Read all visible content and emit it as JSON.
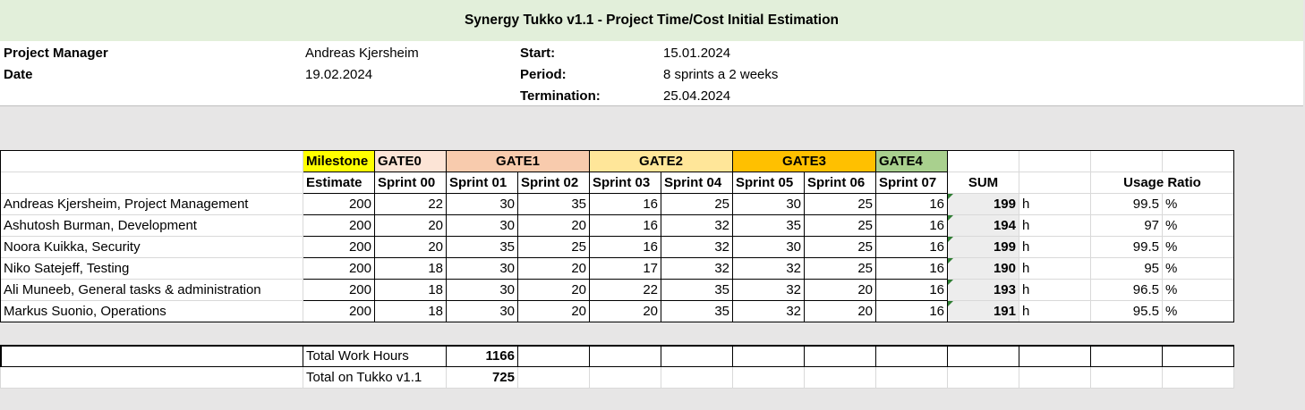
{
  "title": "Synergy Tukko v1.1 - Project Time/Cost Initial Estimation",
  "info": {
    "project_manager_label": "Project Manager",
    "project_manager": "Andreas Kjersheim",
    "date_label": "Date",
    "date": "19.02.2024",
    "start_label": "Start:",
    "start": "15.01.2024",
    "period_label": "Period:",
    "period": "8 sprints a 2 weeks",
    "termination_label": "Termination:",
    "termination": "25.04.2024"
  },
  "header": {
    "milestone": "Milestone",
    "gates": [
      "GATE0",
      "GATE1",
      "GATE2",
      "GATE3",
      "GATE4"
    ],
    "estimate": "Estimate",
    "sprints": [
      "Sprint 00",
      "Sprint 01",
      "Sprint 02",
      "Sprint 03",
      "Sprint 04",
      "Sprint 05",
      "Sprint 06",
      "Sprint 07"
    ],
    "sum": "SUM",
    "usage_ratio": "Usage Ratio"
  },
  "rows": [
    {
      "name": "Andreas Kjersheim, Project Management",
      "estimate": "200",
      "sprints": [
        "22",
        "30",
        "35",
        "16",
        "25",
        "30",
        "25",
        "16"
      ],
      "sum": "199",
      "unit": "h",
      "ratio": "99.5",
      "pct": "%"
    },
    {
      "name": "Ashutosh Burman, Development",
      "estimate": "200",
      "sprints": [
        "20",
        "30",
        "20",
        "16",
        "32",
        "35",
        "25",
        "16"
      ],
      "sum": "194",
      "unit": "h",
      "ratio": "97",
      "pct": "%"
    },
    {
      "name": "Noora Kuikka, Security",
      "estimate": "200",
      "sprints": [
        "20",
        "35",
        "25",
        "16",
        "32",
        "30",
        "25",
        "16"
      ],
      "sum": "199",
      "unit": "h",
      "ratio": "99.5",
      "pct": "%"
    },
    {
      "name": "Niko Satejeff, Testing",
      "estimate": "200",
      "sprints": [
        "18",
        "30",
        "20",
        "17",
        "32",
        "32",
        "25",
        "16"
      ],
      "sum": "190",
      "unit": "h",
      "ratio": "95",
      "pct": "%"
    },
    {
      "name": "Ali Muneeb, General tasks & administration",
      "estimate": "200",
      "sprints": [
        "18",
        "30",
        "20",
        "22",
        "35",
        "32",
        "20",
        "16"
      ],
      "sum": "193",
      "unit": "h",
      "ratio": "96.5",
      "pct": "%"
    },
    {
      "name": "Markus Suonio, Operations",
      "estimate": "200",
      "sprints": [
        "18",
        "30",
        "20",
        "20",
        "35",
        "32",
        "20",
        "16"
      ],
      "sum": "191",
      "unit": "h",
      "ratio": "95.5",
      "pct": "%"
    }
  ],
  "totals": {
    "work_hours_label": "Total Work Hours",
    "work_hours": "1166",
    "tukko_label": "Total on Tukko v1.1",
    "tukko": "725"
  },
  "colors": {
    "title_bg": "#e2efda",
    "milestone": "#ffff00",
    "gate0": "#fce4d6",
    "gate1": "#f8cbad",
    "gate2": "#ffe699",
    "gate3": "#ffc000",
    "gate4": "#a9d08e",
    "sheet_bg": "#e7e6e6"
  }
}
